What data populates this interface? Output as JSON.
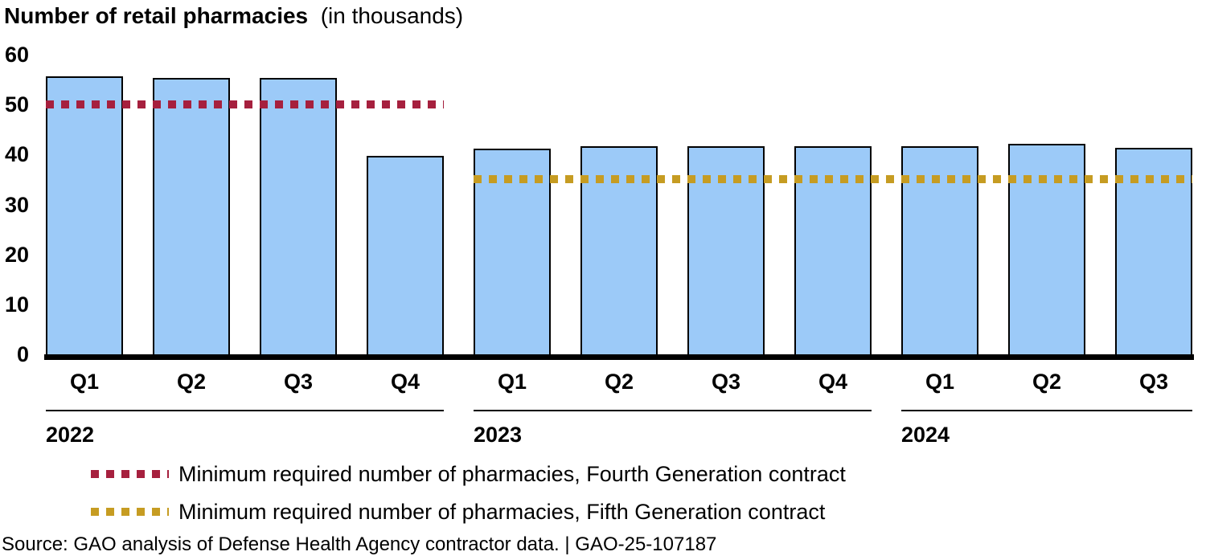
{
  "title": "Number of retail pharmacies",
  "subtitle": "(in thousands)",
  "chart_data": {
    "type": "bar",
    "title": "Number of retail pharmacies (in thousands)",
    "categories": [
      "Q1",
      "Q2",
      "Q3",
      "Q4",
      "Q1",
      "Q2",
      "Q3",
      "Q4",
      "Q1",
      "Q2",
      "Q3"
    ],
    "values": [
      55.6,
      55.4,
      55.3,
      39.8,
      41.2,
      41.6,
      41.7,
      41.6,
      41.7,
      42.2,
      41.4
    ],
    "ylim": [
      0,
      60
    ],
    "yticks": [
      0,
      10,
      20,
      30,
      40,
      50,
      60
    ],
    "grid": "off",
    "legend_position": "bottom",
    "bar_color": "#9CCAF8",
    "bar_border_color": "#000000",
    "year_groups": [
      {
        "label": "2022",
        "quarters": [
          "Q1",
          "Q2",
          "Q3",
          "Q4"
        ],
        "bar_span": [
          0,
          3
        ]
      },
      {
        "label": "2023",
        "quarters": [
          "Q1",
          "Q2",
          "Q3",
          "Q4"
        ],
        "bar_span": [
          4,
          7
        ]
      },
      {
        "label": "2024",
        "quarters": [
          "Q1",
          "Q2",
          "Q3"
        ],
        "bar_span": [
          8,
          10
        ]
      }
    ],
    "reference_lines": [
      {
        "value": 50,
        "color": "#A6203E",
        "style": "dotted",
        "span_bars": [
          0,
          3
        ],
        "label": "Minimum required number of pharmacies, Fourth Generation contract"
      },
      {
        "value": 35,
        "color": "#C69C22",
        "style": "dotted",
        "span_bars": [
          4,
          10
        ],
        "label": "Minimum required number of pharmacies, Fifth Generation contract"
      }
    ]
  },
  "source": "Source: GAO analysis of Defense Health Agency contractor data.  |  GAO-25-107187"
}
